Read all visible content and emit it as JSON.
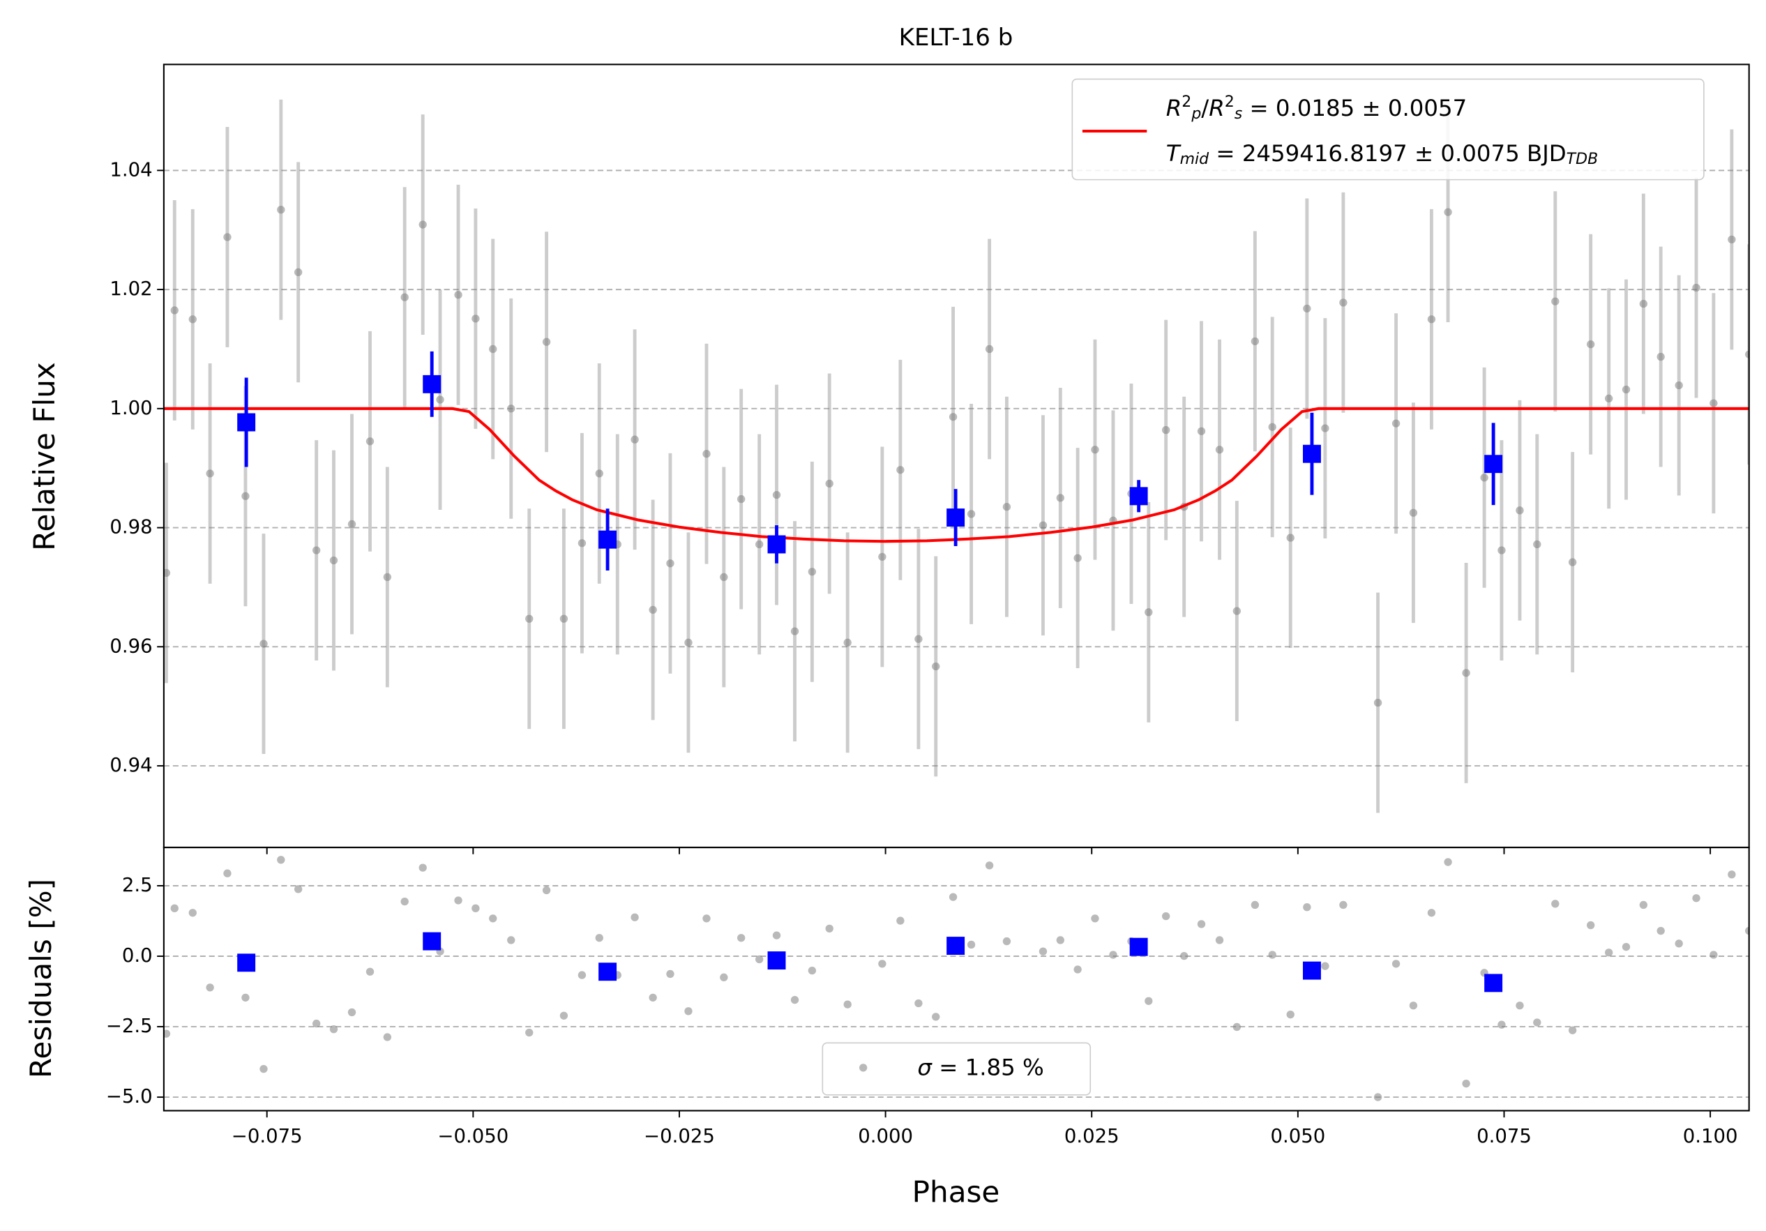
{
  "chart_data": [
    {
      "type": "scatter",
      "title": "KELT-16 b",
      "ylabel": "Relative Flux",
      "xlim": [
        -0.0875,
        0.1047
      ],
      "ylim": [
        0.9263,
        1.0578
      ],
      "yticks": [
        0.94,
        0.96,
        0.98,
        {
          "value": 1,
          "label": "1.00"
        },
        1.02,
        1.04
      ],
      "grid": true,
      "legend": "upper right",
      "data": {
        "color": "#808080",
        "x": [
          -0.0872,
          -0.0862,
          -0.084,
          -0.0819,
          -0.0798,
          -0.0776,
          -0.0754,
          -0.0733,
          -0.0712,
          -0.069,
          -0.0669,
          -0.0647,
          -0.0625,
          -0.0604,
          -0.0583,
          -0.0561,
          -0.054,
          -0.0518,
          -0.0497,
          -0.0476,
          -0.0454,
          -0.0432,
          -0.0411,
          -0.039,
          -0.0368,
          -0.0347,
          -0.0325,
          -0.0304,
          -0.0282,
          -0.0261,
          -0.0239,
          -0.0217,
          -0.0196,
          -0.0175,
          -0.0153,
          -0.0132,
          -0.011,
          -0.0089,
          -0.0068,
          -0.0046,
          -0.0004,
          0.0018,
          0.004,
          0.0061,
          0.0082,
          0.0104,
          0.0126,
          0.0147,
          0.0191,
          0.0212,
          0.0233,
          0.0254,
          0.0276,
          0.0298,
          0.0319,
          0.034,
          0.0362,
          0.0383,
          0.0405,
          0.0426,
          0.0448,
          0.0469,
          0.0491,
          0.0511,
          0.0533,
          0.0555,
          0.0597,
          0.0619,
          0.064,
          0.0662,
          0.0682,
          0.0704,
          0.0726,
          0.0747,
          0.0769,
          0.079,
          0.0812,
          0.0833,
          0.0855,
          0.0877,
          0.0898,
          0.0919,
          0.094,
          0.0962,
          0.0983,
          0.1004,
          0.1026,
          0.1047
        ],
        "values": [
          0.9724,
          1.0165,
          1.015,
          0.9891,
          1.0288,
          0.9853,
          0.9605,
          1.0334,
          1.0229,
          0.9762,
          0.9745,
          0.9806,
          0.9945,
          0.9717,
          1.0187,
          1.0309,
          1.0015,
          1.0191,
          1.0151,
          1.01,
          1.0,
          0.9647,
          1.0112,
          0.9647,
          0.9774,
          0.9891,
          0.9772,
          0.9948,
          0.9662,
          0.974,
          0.9607,
          0.9924,
          0.9717,
          0.9848,
          0.9772,
          0.9855,
          0.9626,
          0.9726,
          0.9874,
          0.9607,
          0.9751,
          0.9897,
          0.9613,
          0.9567,
          0.9986,
          0.9823,
          1.01,
          0.9835,
          0.9804,
          0.985,
          0.9749,
          0.9931,
          0.9812,
          0.9857,
          0.9658,
          0.9964,
          0.9835,
          0.9962,
          0.9931,
          0.966,
          1.0113,
          0.9969,
          0.9783,
          1.0168,
          0.9967,
          1.0178,
          0.9506,
          0.9975,
          0.9825,
          1.015,
          1.033,
          0.9556,
          0.9884,
          0.9762,
          0.9829,
          0.9772,
          1.018,
          0.9742,
          1.0108,
          1.0017,
          1.0032,
          1.0176,
          1.0087,
          1.0039,
          1.0203,
          1.0009,
          1.0284,
          1.0091
        ],
        "error": 0.0185
      },
      "binned": {
        "color": "#0000ff",
        "x": [
          -0.0775,
          -0.055,
          -0.0337,
          -0.0132,
          0.0085,
          0.0307,
          0.0517,
          0.0737
        ],
        "values": [
          0.9977,
          1.0041,
          0.978,
          0.9772,
          0.9817,
          0.9853,
          0.9924,
          0.9907
        ],
        "error": [
          0.0075,
          0.0055,
          0.0052,
          0.0032,
          0.0048,
          0.0027,
          0.0069,
          0.0069
        ]
      },
      "model": {
        "color": "#ff0000",
        "x": [
          -0.0875,
          -0.0525,
          -0.0505,
          -0.048,
          -0.045,
          -0.042,
          -0.04,
          -0.038,
          -0.035,
          -0.03,
          -0.025,
          -0.02,
          -0.015,
          -0.01,
          -0.005,
          0,
          0.005,
          0.01,
          0.015,
          0.02,
          0.025,
          0.03,
          0.035,
          0.038,
          0.04,
          0.042,
          0.045,
          0.048,
          0.0505,
          0.0525,
          0.1047
        ],
        "values": [
          1,
          1,
          0.9995,
          0.9965,
          0.992,
          0.988,
          0.9862,
          0.9847,
          0.983,
          0.9813,
          0.9801,
          0.9792,
          0.9785,
          0.9781,
          0.9778,
          0.9777,
          0.9778,
          0.9781,
          0.9785,
          0.9792,
          0.9801,
          0.9813,
          0.983,
          0.9847,
          0.9862,
          0.988,
          0.992,
          0.9965,
          0.9995,
          1,
          1
        ],
        "label": [
          [
            {
              "text": "R",
              "italic": true
            },
            {
              "text": "2",
              "sup": true
            },
            {
              "text": "p",
              "sub": true,
              "italic": true
            },
            {
              "text": "/"
            },
            {
              "text": "R",
              "italic": true
            },
            {
              "text": "2",
              "sup": true
            },
            {
              "text": "s",
              "sub": true,
              "italic": true
            },
            {
              "text": " = 0.0185 ± 0.0057"
            }
          ],
          [
            {
              "text": "T",
              "italic": true
            },
            {
              "text": "mid",
              "sub": true,
              "italic": true
            },
            {
              "text": " = 2459416.8197 ± 0.0075 BJD"
            },
            {
              "text": "TDB",
              "sub": true,
              "italic": true
            }
          ]
        ]
      }
    },
    {
      "type": "scatter",
      "xlabel": "Phase",
      "ylabel": "Residuals [%]",
      "xlim": [
        -0.0875,
        0.1047
      ],
      "ylim": [
        -5.48,
        3.86
      ],
      "xticks": [
        {
          "value": -0.075,
          "label": "−0.075"
        },
        {
          "value": -0.05,
          "label": "−0.050"
        },
        {
          "value": -0.025,
          "label": "−0.025"
        },
        {
          "value": 0,
          "label": "0.000"
        },
        0.025,
        {
          "value": 0.05,
          "label": "0.050"
        },
        0.075,
        {
          "value": 0.1,
          "label": "0.100"
        }
      ],
      "yticks": [
        {
          "value": -5,
          "label": "−5.0"
        },
        {
          "value": -2.5,
          "label": "−2.5"
        },
        {
          "value": 0,
          "label": "0.0"
        },
        2.5
      ],
      "grid": true,
      "legend": "lower center",
      "data": {
        "color": "#808080",
        "x": [
          -0.0872,
          -0.0862,
          -0.084,
          -0.0819,
          -0.0798,
          -0.0776,
          -0.0754,
          -0.0733,
          -0.0712,
          -0.069,
          -0.0669,
          -0.0647,
          -0.0625,
          -0.0604,
          -0.0583,
          -0.0561,
          -0.054,
          -0.0518,
          -0.0497,
          -0.0476,
          -0.0454,
          -0.0432,
          -0.0411,
          -0.039,
          -0.0368,
          -0.0347,
          -0.0325,
          -0.0304,
          -0.0282,
          -0.0261,
          -0.0239,
          -0.0217,
          -0.0196,
          -0.0175,
          -0.0153,
          -0.0132,
          -0.011,
          -0.0089,
          -0.0068,
          -0.0046,
          -0.0004,
          0.0018,
          0.004,
          0.0061,
          0.0082,
          0.0104,
          0.0126,
          0.0147,
          0.0191,
          0.0212,
          0.0233,
          0.0254,
          0.0276,
          0.0298,
          0.0319,
          0.034,
          0.0362,
          0.0383,
          0.0405,
          0.0426,
          0.0448,
          0.0469,
          0.0491,
          0.0511,
          0.0533,
          0.0555,
          0.0597,
          0.0619,
          0.064,
          0.0662,
          0.0682,
          0.0704,
          0.0726,
          0.0747,
          0.0769,
          0.079,
          0.0812,
          0.0833,
          0.0855,
          0.0877,
          0.0898,
          0.0919,
          0.094,
          0.0962,
          0.0983,
          0.1004,
          0.1026,
          0.1047
        ],
        "values": [
          -2.75,
          1.7,
          1.54,
          -1.11,
          2.94,
          -1.47,
          -4.0,
          3.42,
          2.38,
          -2.39,
          -2.59,
          -1.99,
          -0.55,
          -2.87,
          1.94,
          3.14,
          0.17,
          1.98,
          1.7,
          1.34,
          0.57,
          -2.71,
          2.34,
          -2.11,
          -0.67,
          0.65,
          -0.67,
          1.38,
          -1.47,
          -0.63,
          -1.95,
          1.34,
          -0.75,
          0.65,
          -0.11,
          0.74,
          -1.55,
          -0.51,
          0.98,
          -1.71,
          -0.27,
          1.26,
          -1.67,
          -2.15,
          2.1,
          0.41,
          3.22,
          0.53,
          0.17,
          0.57,
          -0.47,
          1.34,
          0.05,
          0.53,
          -1.59,
          1.42,
          0.01,
          1.14,
          0.57,
          -2.51,
          1.82,
          0.05,
          -2.07,
          1.74,
          -0.35,
          1.82,
          -5.0,
          -0.27,
          -1.75,
          1.54,
          3.34,
          -4.52,
          -0.59,
          -2.43,
          -1.75,
          -2.35,
          1.86,
          -2.63,
          1.1,
          0.13,
          0.33,
          1.82,
          0.9,
          0.45,
          2.06,
          0.05,
          2.9,
          0.9
        ],
        "label": [
          {
            "text": "σ",
            "italic": true
          },
          {
            "text": " = 1.85 %"
          }
        ]
      },
      "binned": {
        "color": "#0000ff",
        "x": [
          -0.0775,
          -0.055,
          -0.0337,
          -0.0132,
          0.0085,
          0.0307,
          0.0517,
          0.0737
        ],
        "values": [
          -0.23,
          0.53,
          -0.55,
          -0.15,
          0.37,
          0.33,
          -0.51,
          -0.95
        ]
      }
    }
  ]
}
